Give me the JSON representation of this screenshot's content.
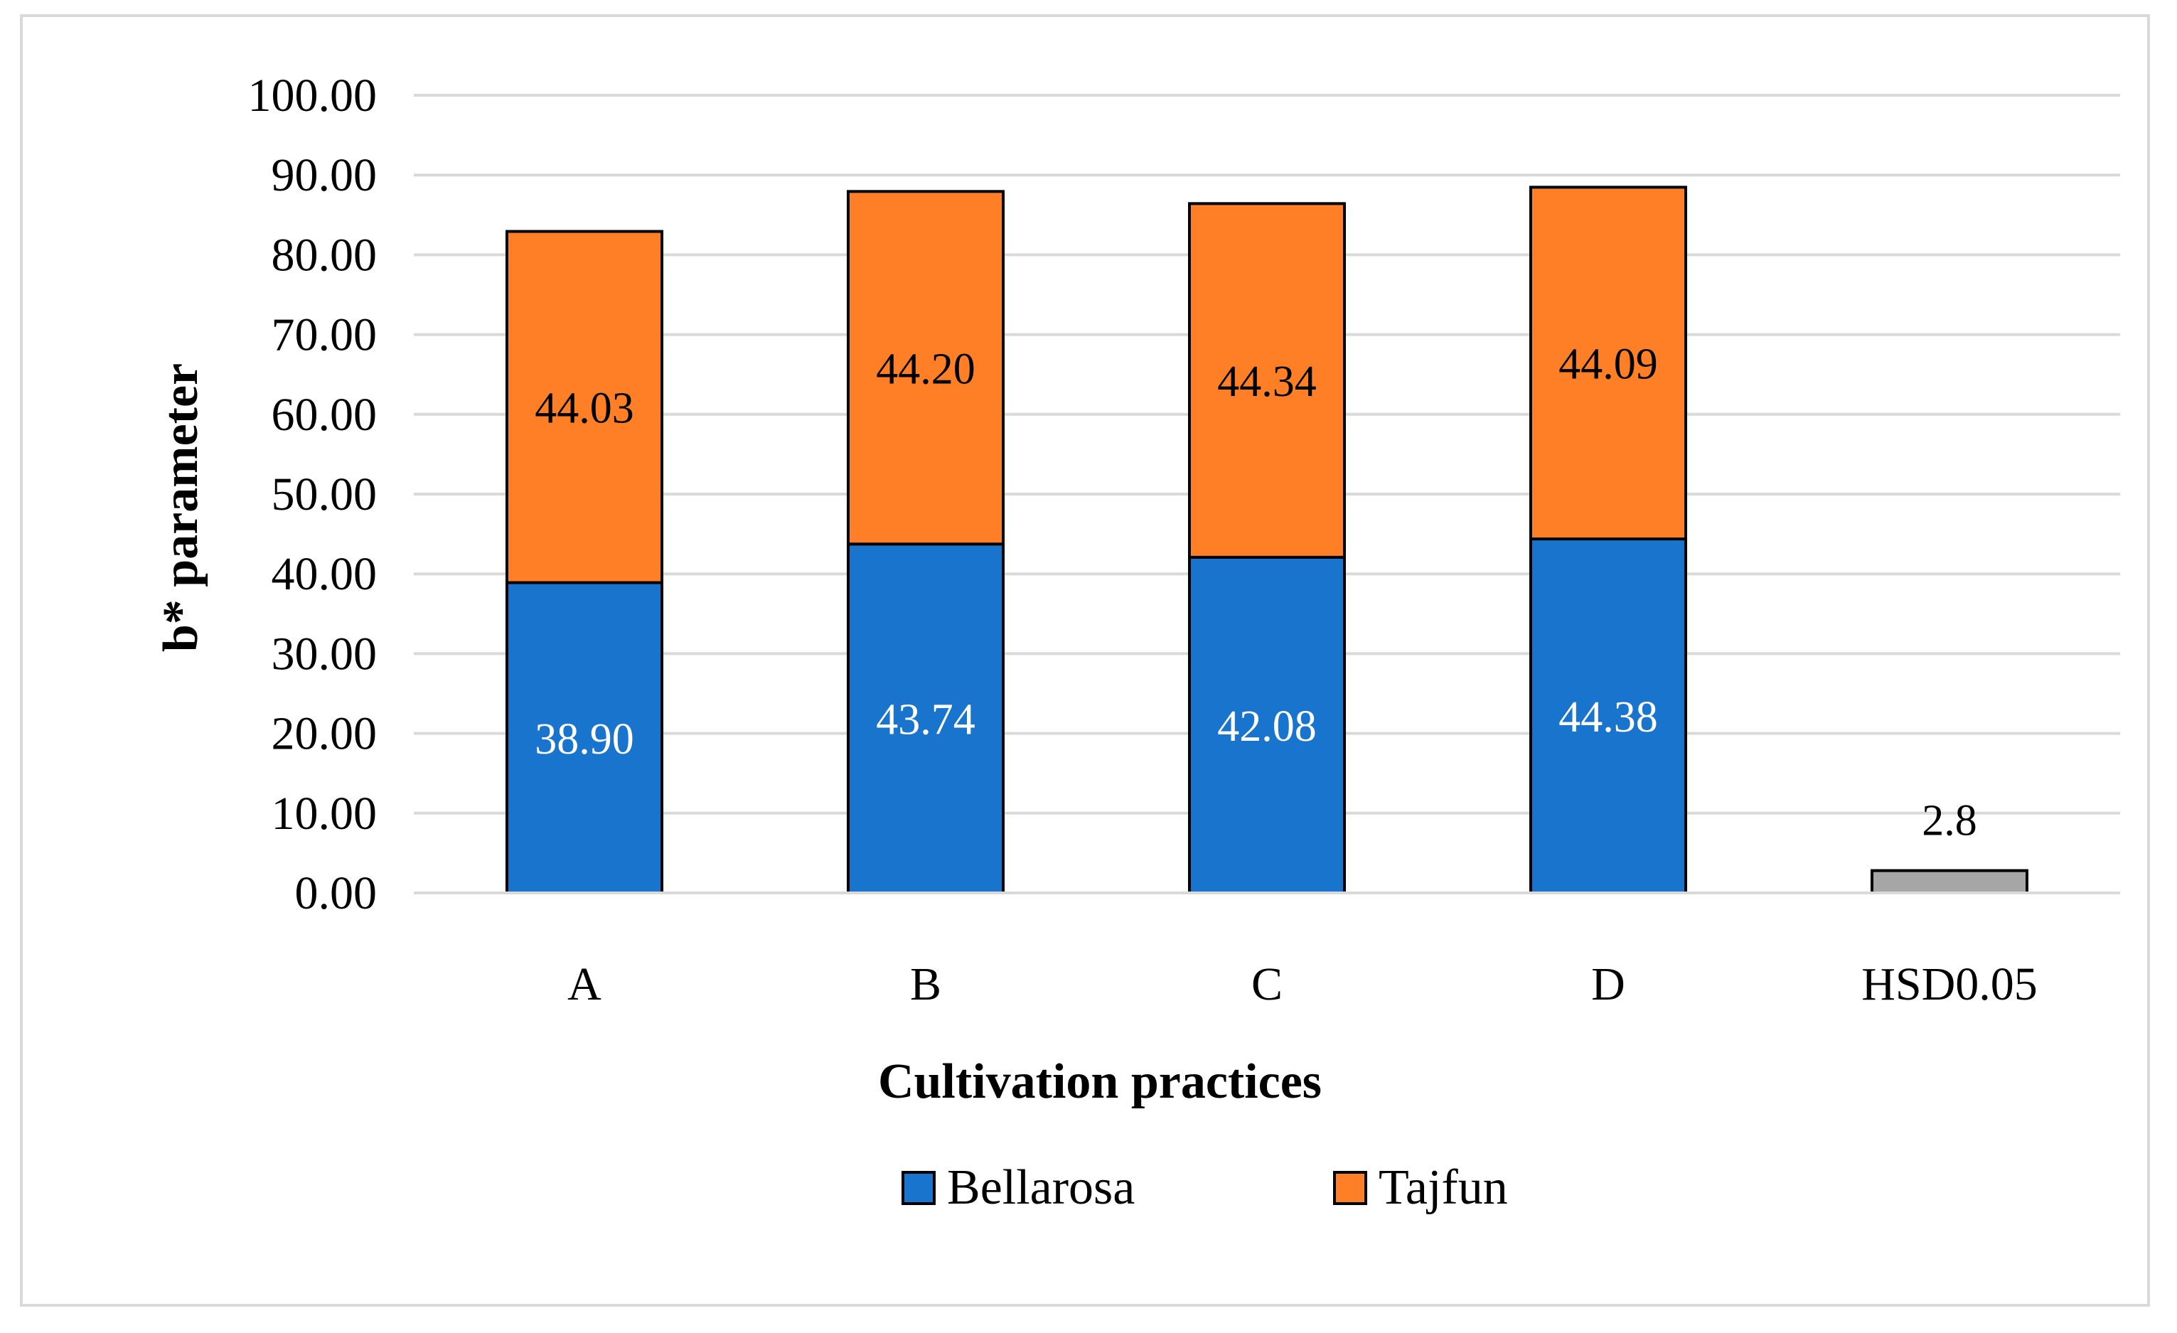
{
  "chart_data": {
    "type": "stacked-bar",
    "xlabel": "Cultivation practices",
    "ylabel": "b* parameter",
    "ylim": [
      0,
      100
    ],
    "ytick_step": 10,
    "ytick_labels": [
      "0.00",
      "10.00",
      "20.00",
      "30.00",
      "40.00",
      "50.00",
      "60.00",
      "70.00",
      "80.00",
      "90.00",
      "100.00"
    ],
    "grid": true,
    "categories": [
      "A",
      "B",
      "C",
      "D",
      "HSD0.05"
    ],
    "series": [
      {
        "name": "Bellarosa",
        "color": "#1874cd",
        "label_color": "#ffffff",
        "values": [
          38.9,
          43.74,
          42.08,
          44.38,
          null
        ],
        "labels": [
          "38.90",
          "43.74",
          "42.08",
          "44.38",
          ""
        ]
      },
      {
        "name": "Tajfun",
        "color": "#ff7f27",
        "label_color": "#000000",
        "values": [
          44.03,
          44.2,
          44.34,
          44.09,
          null
        ],
        "labels": [
          "44.03",
          "44.20",
          "44.34",
          "44.09",
          ""
        ]
      }
    ],
    "hsd": {
      "category": "HSD0.05",
      "value": 2.8,
      "label": "2.8",
      "color": "#a6a6a6"
    },
    "legend": {
      "position": "bottom",
      "entries": [
        "Bellarosa",
        "Tajfun"
      ]
    }
  }
}
